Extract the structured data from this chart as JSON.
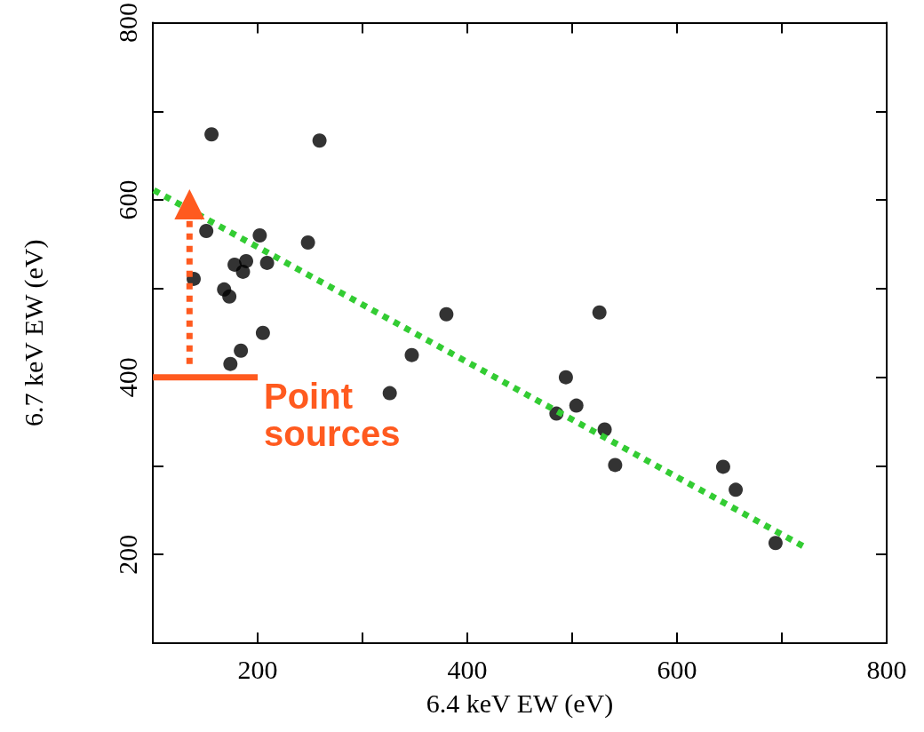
{
  "chart_data": {
    "type": "scatter",
    "xlabel": "6.4 keV EW (eV)",
    "ylabel": "6.7 keV EW (eV)",
    "xlim": [
      100,
      800
    ],
    "xticks": [
      {
        "value": 100,
        "label": null
      },
      200,
      {
        "value": 300,
        "label": null
      },
      400,
      {
        "value": 500,
        "label": null
      },
      600,
      {
        "value": 700,
        "label": null
      },
      800
    ],
    "ylim": [
      100,
      800
    ],
    "yticks": [
      {
        "value": 100,
        "label": null
      },
      200,
      {
        "value": 300,
        "label": null
      },
      400,
      {
        "value": 500,
        "label": null
      },
      600,
      {
        "value": 700,
        "label": null
      },
      800
    ],
    "grid": false,
    "marker": "circle",
    "series": [
      {
        "color": "#000000",
        "x": [
          156,
          259,
          151,
          202,
          248,
          139,
          178,
          189,
          186,
          209,
          168,
          173,
          205,
          184,
          174,
          380,
          347,
          326,
          526,
          494,
          504,
          485,
          531,
          541,
          644,
          656,
          694
        ],
        "values": [
          674,
          667,
          565,
          560,
          552,
          511,
          527,
          531,
          519,
          529,
          499,
          491,
          450,
          430,
          415,
          471,
          425,
          382,
          473,
          400,
          368,
          359,
          341,
          301,
          299,
          273,
          213
        ]
      },
      {
        "type": "line",
        "color": "#33cc33",
        "line_style": "dotted",
        "marker": "none",
        "x": [
          101,
          724
        ],
        "values": [
          611,
          207
        ]
      },
      {
        "type": "line",
        "color": "#ff5a1f",
        "line_style": "solid",
        "marker": "none",
        "x": [
          100,
          200
        ],
        "values": [
          400,
          400
        ]
      },
      {
        "type": "line",
        "color": "#ff5a1f",
        "line_style": "dotted",
        "marker": "triangle",
        "x": [
          135,
          135
        ],
        "values": [
          415,
          595
        ]
      }
    ],
    "annotations": [
      "Point sources"
    ]
  }
}
